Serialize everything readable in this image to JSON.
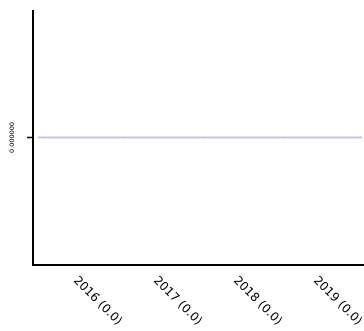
{
  "chart_data": {
    "type": "line",
    "categories": [
      "2016 (0.0)",
      "2017 (0.0)",
      "2018 (0.0)",
      "2019 (0.0)"
    ],
    "series": [
      {
        "values": [
          0.0,
          0.0,
          0.0,
          0.0
        ],
        "color": "#c9c4e8"
      }
    ],
    "yticks": [
      "0.000000"
    ],
    "y_domain": [
      -1,
      1
    ],
    "grid": false,
    "legend": "none",
    "axis_color": "#000000"
  }
}
